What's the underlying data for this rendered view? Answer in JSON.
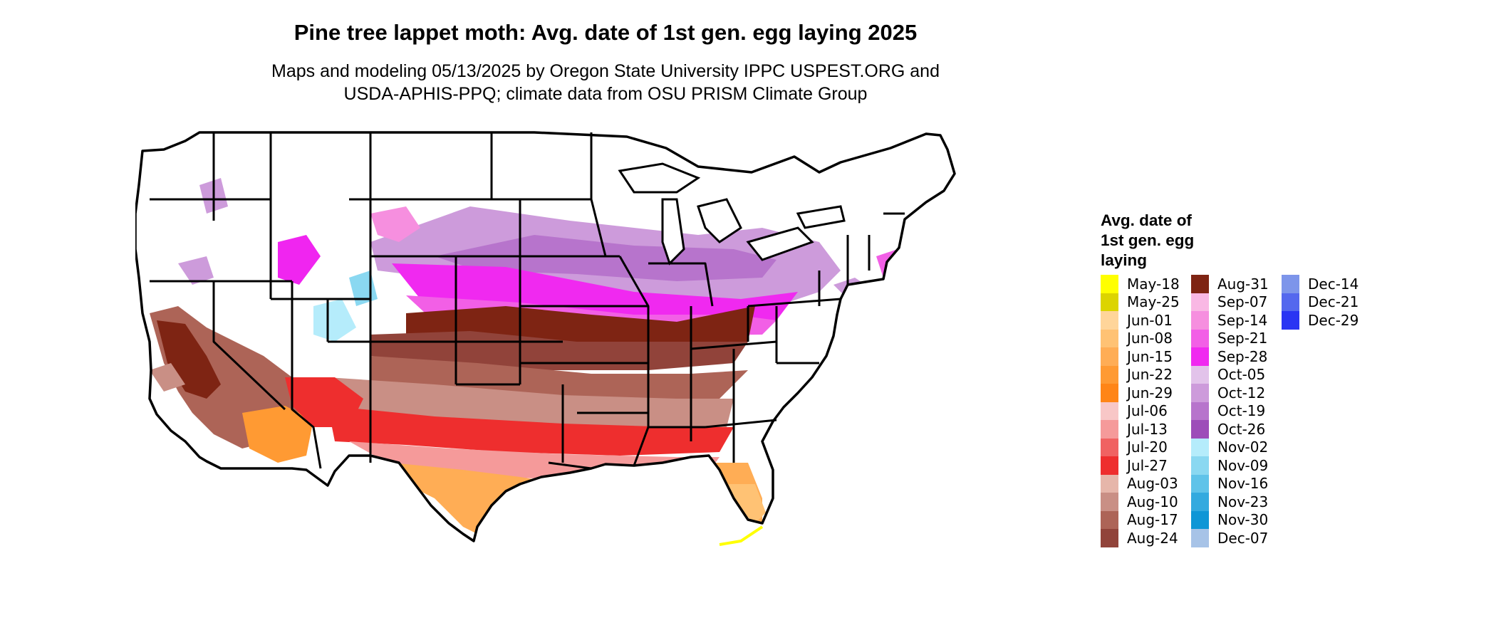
{
  "title": "Pine tree lappet moth: Avg. date of 1st gen. egg laying 2025",
  "subtitle_line1": "Maps and modeling 05/13/2025 by Oregon State University IPPC USPEST.ORG and",
  "subtitle_line2": "USDA-APHIS-PPQ; climate data from OSU PRISM Climate Group",
  "legend": {
    "title_line1": "Avg. date of",
    "title_line2": "1st gen. egg",
    "title_line3": "laying",
    "columns": [
      [
        {
          "label": "May-18",
          "color": "#ffff00"
        },
        {
          "label": "May-25",
          "color": "#dcd400"
        },
        {
          "label": "Jun-01",
          "color": "#ffd59a"
        },
        {
          "label": "Jun-08",
          "color": "#ffc274"
        },
        {
          "label": "Jun-15",
          "color": "#ffad55"
        },
        {
          "label": "Jun-22",
          "color": "#ff9a33"
        },
        {
          "label": "Jun-29",
          "color": "#ff8517"
        },
        {
          "label": "Jul-06",
          "color": "#f8c7c7"
        },
        {
          "label": "Jul-13",
          "color": "#f59a9a"
        },
        {
          "label": "Jul-20",
          "color": "#f06262"
        },
        {
          "label": "Jul-27",
          "color": "#ee2e2e"
        },
        {
          "label": "Aug-03",
          "color": "#e6b6aa"
        },
        {
          "label": "Aug-10",
          "color": "#c98f85"
        },
        {
          "label": "Aug-17",
          "color": "#ad6457"
        },
        {
          "label": "Aug-24",
          "color": "#91433a"
        }
      ],
      [
        {
          "label": "Aug-31",
          "color": "#7e2413"
        },
        {
          "label": "Sep-07",
          "color": "#f9b8e4"
        },
        {
          "label": "Sep-14",
          "color": "#f68fdf"
        },
        {
          "label": "Sep-21",
          "color": "#f25fe6"
        },
        {
          "label": "Sep-28",
          "color": "#f029f0"
        },
        {
          "label": "Oct-05",
          "color": "#e2c3ea"
        },
        {
          "label": "Oct-12",
          "color": "#cd9bdb"
        },
        {
          "label": "Oct-19",
          "color": "#b774cc"
        },
        {
          "label": "Oct-26",
          "color": "#9d4db9"
        },
        {
          "label": "Nov-02",
          "color": "#b5ecfb"
        },
        {
          "label": "Nov-09",
          "color": "#8ad8f1"
        },
        {
          "label": "Nov-16",
          "color": "#5fc3e9"
        },
        {
          "label": "Nov-23",
          "color": "#33aadf"
        },
        {
          "label": "Nov-30",
          "color": "#0f96d6"
        },
        {
          "label": "Dec-07",
          "color": "#a7c3e7"
        }
      ],
      [
        {
          "label": "Dec-14",
          "color": "#7d95ea"
        },
        {
          "label": "Dec-21",
          "color": "#5468ee"
        },
        {
          "label": "Dec-29",
          "color": "#2a35f3"
        }
      ]
    ]
  }
}
